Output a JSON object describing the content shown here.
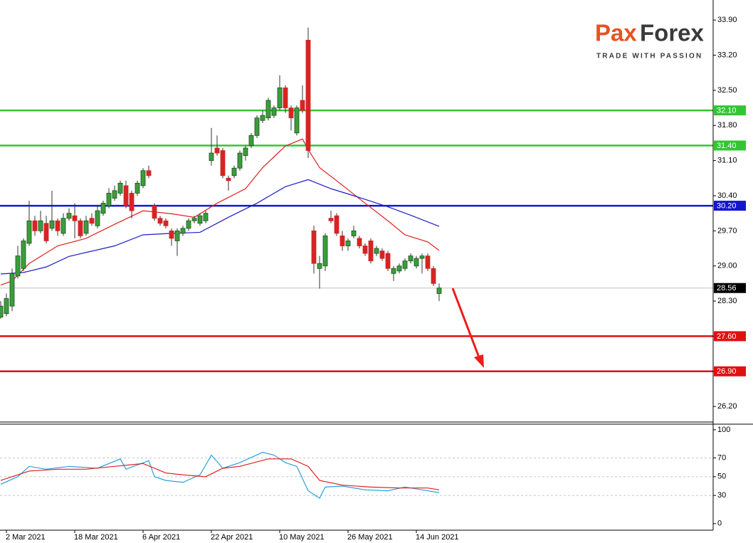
{
  "logo": {
    "brand_a": "Pax",
    "brand_b": "Forex",
    "tagline": "TRADE WITH PASSION"
  },
  "chart_data": [
    {
      "type": "candlestick",
      "categories": [
        null,
        "2 Mar 2021",
        null,
        null,
        null,
        null,
        null,
        null,
        null,
        null,
        null,
        null,
        null,
        "18 Mar 2021",
        null,
        null,
        null,
        null,
        null,
        null,
        null,
        null,
        null,
        null,
        null,
        "6 Apr 2021",
        null,
        null,
        null,
        null,
        null,
        null,
        null,
        null,
        null,
        null,
        null,
        "22 Apr 2021",
        null,
        null,
        null,
        null,
        null,
        null,
        null,
        null,
        null,
        null,
        null,
        "10 May 2021",
        null,
        null,
        null,
        null,
        null,
        null,
        null,
        null,
        null,
        null,
        null,
        "26 May 2021",
        null,
        null,
        null,
        null,
        null,
        null,
        null,
        null,
        null,
        null,
        null,
        "14 Jun 2021",
        null,
        null,
        null,
        null
      ],
      "open": [
        27.98,
        28.05,
        28.2,
        28.8,
        28.95,
        29.45,
        29.9,
        29.7,
        29.85,
        29.75,
        29.9,
        29.65,
        29.95,
        30.0,
        29.9,
        29.65,
        29.95,
        29.8,
        30.05,
        30.2,
        30.35,
        30.45,
        30.6,
        30.45,
        30.45,
        30.6,
        30.9,
        30.2,
        29.95,
        29.9,
        29.7,
        29.5,
        29.65,
        29.75,
        29.9,
        29.85,
        29.9,
        31.1,
        31.35,
        31.3,
        30.75,
        30.8,
        30.95,
        31.2,
        31.4,
        31.6,
        31.9,
        31.95,
        32.0,
        32.15,
        32.55,
        32.15,
        31.65,
        32.3,
        33.5,
        29.7,
        28.95,
        29.0,
        29.95,
        30.0,
        29.6,
        29.4,
        29.6,
        29.55,
        29.4,
        29.5,
        29.25,
        29.3,
        29.25,
        28.85,
        28.9,
        28.95,
        29.1,
        29.0,
        29.15,
        29.2,
        28.95,
        28.45
      ],
      "high": [
        28.3,
        28.45,
        28.95,
        29.4,
        29.55,
        30.3,
        30.0,
        30.1,
        30.0,
        30.5,
        29.95,
        30.05,
        30.15,
        30.25,
        29.95,
        30.0,
        30.05,
        30.2,
        30.3,
        30.55,
        30.6,
        30.7,
        30.7,
        30.5,
        30.7,
        30.95,
        31.0,
        30.25,
        30.0,
        29.95,
        29.75,
        29.75,
        29.8,
        29.95,
        30.0,
        30.05,
        30.1,
        31.75,
        31.6,
        31.35,
        30.8,
        31.0,
        31.3,
        31.4,
        31.65,
        32.0,
        32.1,
        32.35,
        32.2,
        32.8,
        32.6,
        32.2,
        32.2,
        32.6,
        33.75,
        29.8,
        29.2,
        29.65,
        30.1,
        30.05,
        29.7,
        29.55,
        29.8,
        29.6,
        29.45,
        29.55,
        29.4,
        29.35,
        29.3,
        29.0,
        29.05,
        29.15,
        29.25,
        29.2,
        29.25,
        29.25,
        29.0,
        28.65
      ],
      "low": [
        27.95,
        28.0,
        28.1,
        28.75,
        28.9,
        29.4,
        29.6,
        29.65,
        29.45,
        29.7,
        29.6,
        29.6,
        29.9,
        29.55,
        29.55,
        29.6,
        29.8,
        29.75,
        30.0,
        30.15,
        30.3,
        30.4,
        30.15,
        29.95,
        30.4,
        30.55,
        30.75,
        29.9,
        29.8,
        29.75,
        29.4,
        29.2,
        29.6,
        29.7,
        29.85,
        29.8,
        29.85,
        31.0,
        31.2,
        30.75,
        30.5,
        30.75,
        30.9,
        31.1,
        31.35,
        31.55,
        31.85,
        31.9,
        31.95,
        32.1,
        32.05,
        31.7,
        31.6,
        32.05,
        31.15,
        28.85,
        28.55,
        28.9,
        29.85,
        29.6,
        29.3,
        29.3,
        29.55,
        29.35,
        29.2,
        29.05,
        29.2,
        29.1,
        28.9,
        28.7,
        28.85,
        28.9,
        29.05,
        28.95,
        28.85,
        28.9,
        28.6,
        28.3
      ],
      "close": [
        28.2,
        28.35,
        28.85,
        29.2,
        29.5,
        29.9,
        29.7,
        29.9,
        29.5,
        29.9,
        29.7,
        29.95,
        30.05,
        29.9,
        29.6,
        29.9,
        29.85,
        30.1,
        30.25,
        30.45,
        30.5,
        30.65,
        30.2,
        30.1,
        30.65,
        30.9,
        30.8,
        29.95,
        29.85,
        29.8,
        29.55,
        29.7,
        29.75,
        29.9,
        29.95,
        30.0,
        30.05,
        31.25,
        31.25,
        30.8,
        30.7,
        30.95,
        31.25,
        31.35,
        31.6,
        31.95,
        32.0,
        32.3,
        32.15,
        32.55,
        32.15,
        31.95,
        32.15,
        32.1,
        31.3,
        29.05,
        29.05,
        29.6,
        29.9,
        29.65,
        29.4,
        29.5,
        29.7,
        29.4,
        29.25,
        29.1,
        29.35,
        29.15,
        28.95,
        28.95,
        29.0,
        29.1,
        29.2,
        29.15,
        29.2,
        28.95,
        28.65,
        28.56
      ],
      "up_color": "#3a9e3a",
      "down_color": "#d62424",
      "xlim": [
        -0.125,
        125.125
      ],
      "ylim": [
        25.89,
        34.3
      ],
      "yticks": [
        {
          "value": 33.9,
          "label": "33.90"
        },
        {
          "value": 33.2,
          "label": "33.20"
        },
        {
          "value": 32.5,
          "label": "32.50"
        },
        {
          "value": 31.8,
          "label": "31.80"
        },
        {
          "value": 31.1,
          "label": "31.10"
        },
        {
          "value": 30.4,
          "label": "30.40"
        },
        {
          "value": 29.7,
          "label": "29.70"
        },
        {
          "value": 29.0,
          "label": "29.00"
        },
        {
          "value": 28.3,
          "label": "28.30"
        },
        {
          "value": 27.6,
          "label": "27.60"
        },
        {
          "value": 26.9,
          "label": "26.90"
        },
        {
          "value": 26.2,
          "label": "26.20"
        }
      ],
      "series": [
        {
          "color": "#e02020",
          "x": [
            0,
            2,
            5,
            10,
            15,
            20,
            25,
            30,
            34,
            38,
            43,
            46,
            50,
            53,
            54,
            56,
            60,
            64,
            68,
            71,
            75,
            77
          ],
          "values": [
            28.62,
            28.7,
            29.05,
            29.4,
            29.55,
            29.83,
            30.1,
            30.04,
            29.97,
            30.25,
            30.54,
            30.96,
            31.39,
            31.53,
            31.32,
            30.96,
            30.61,
            30.25,
            29.9,
            29.62,
            29.48,
            29.31
          ]
        },
        {
          "color": "#1c1cc8",
          "x": [
            0,
            4,
            8,
            12,
            20,
            25,
            30,
            35,
            40,
            45,
            50,
            54,
            58,
            62,
            68,
            72,
            77
          ],
          "values": [
            28.84,
            28.87,
            28.98,
            29.19,
            29.4,
            29.62,
            29.65,
            29.67,
            29.97,
            30.25,
            30.58,
            30.72,
            30.54,
            30.4,
            30.18,
            30.01,
            29.79
          ]
        }
      ],
      "levels": [
        {
          "value": 32.1,
          "label": "32.10",
          "color": "#33c633"
        },
        {
          "value": 31.4,
          "label": "31.40",
          "color": "#33c633"
        },
        {
          "value": 30.2,
          "label": "30.20",
          "color": "#1515d0"
        },
        {
          "value": 27.6,
          "label": "27.60",
          "color": "#e01010"
        },
        {
          "value": 26.9,
          "label": "26.90",
          "color": "#e01010"
        }
      ],
      "last_price": {
        "value": 28.56,
        "label": "28.56"
      }
    },
    {
      "type": "line",
      "xlim": [
        -0.125,
        125.125
      ],
      "ylim": [
        -7,
        106
      ],
      "yticks": [
        0,
        30,
        50,
        70,
        100
      ],
      "levels": [
        30,
        50,
        70
      ],
      "series": [
        {
          "color": "#2aa0e0",
          "x": [
            0,
            3,
            5,
            8,
            12,
            17,
            21,
            22,
            26,
            27,
            29,
            32,
            35,
            37,
            39,
            42,
            46,
            48,
            50,
            52,
            54,
            56,
            57,
            60,
            64,
            68,
            71,
            74,
            77
          ],
          "values": [
            42,
            50,
            61,
            58,
            61,
            59,
            69,
            58,
            67,
            50,
            46,
            44,
            52,
            73,
            59,
            65,
            76,
            73,
            65,
            61,
            35,
            27,
            39,
            40,
            36,
            35,
            39,
            36,
            33
          ]
        },
        {
          "color": "#e02020",
          "x": [
            0,
            5,
            10,
            15,
            20,
            25,
            29,
            32,
            36,
            39,
            42,
            47,
            51,
            54,
            56,
            60,
            65,
            70,
            75,
            77
          ],
          "values": [
            46,
            56,
            58,
            58,
            61,
            64,
            54,
            52,
            50,
            59,
            61,
            69,
            69,
            61,
            46,
            41,
            39,
            38,
            38,
            36
          ]
        }
      ]
    }
  ]
}
